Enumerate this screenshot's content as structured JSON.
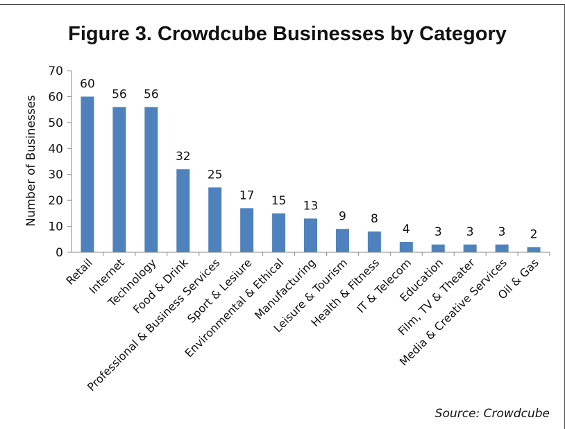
{
  "chart_data": {
    "type": "bar",
    "title": "Figure 3. Crowdcube Businesses by Category",
    "ylabel": "Number of Businesses",
    "xlabel": "",
    "ylim": [
      0,
      70
    ],
    "yticks": [
      0,
      10,
      20,
      30,
      40,
      50,
      60,
      70
    ],
    "grid": false,
    "legend": "none",
    "categories": [
      "Retail",
      "Internet",
      "Technology",
      "Food & Drink",
      "Professional & Business Services",
      "Sport & Lesiure",
      "Environmental & Ethical",
      "Manufacturing",
      "Leisure & Tourism",
      "Health & Fitness",
      "IT & Telecom",
      "Education",
      "Film, TV & Theater",
      "Media & Creative Services",
      "Oil & Gas"
    ],
    "values": [
      60,
      56,
      56,
      32,
      25,
      17,
      15,
      13,
      9,
      8,
      4,
      3,
      3,
      3,
      2
    ],
    "bar_color": "#4f81bd",
    "source": "Source: Crowdcube"
  }
}
